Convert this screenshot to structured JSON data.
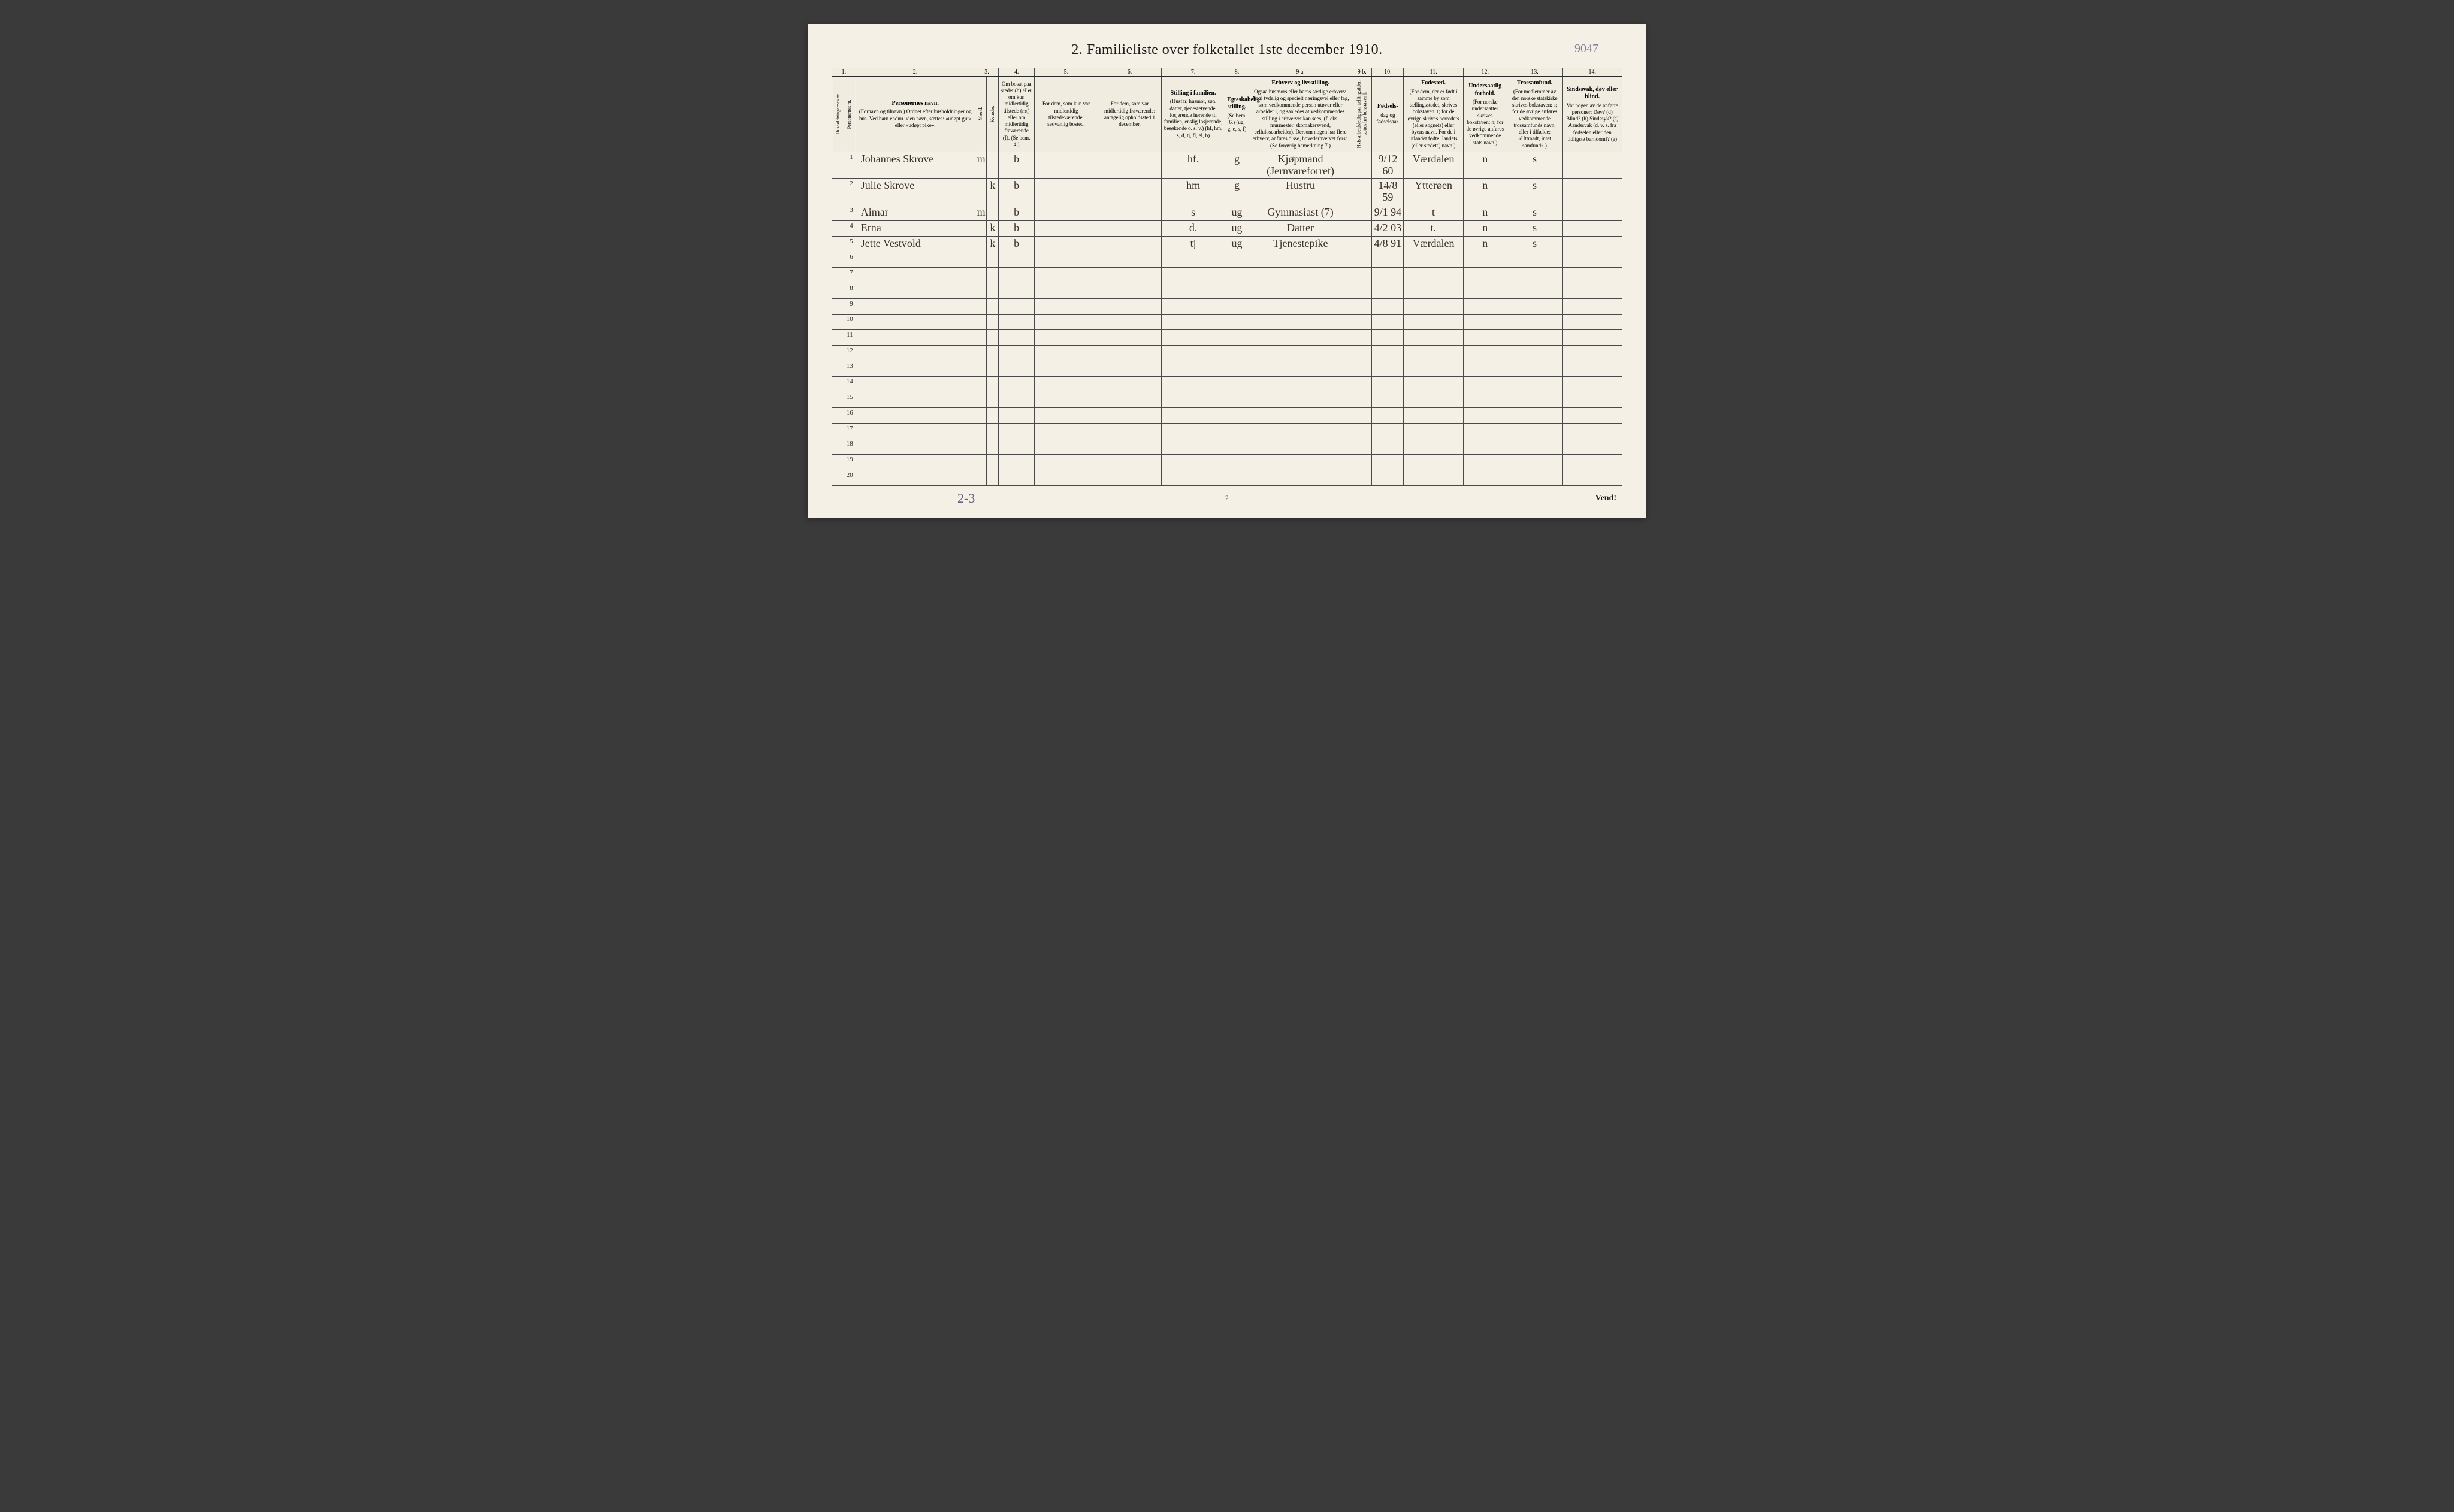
{
  "title": "2.  Familieliste over folketallet 1ste december 1910.",
  "top_annotation": "9047",
  "colnums": [
    "1.",
    "2.",
    "3.",
    "4.",
    "5.",
    "6.",
    "7.",
    "8.",
    "9 a.",
    "9 b.",
    "10.",
    "11.",
    "12.",
    "13.",
    "14."
  ],
  "headers": {
    "hnr": "Husholdningernes nr.",
    "pnr": "Personernes nr.",
    "name": {
      "title": "Personernes navn.",
      "sub": "(Fornavn og tilnavn.)\nOrdnet efter husholdninger og hus.\nVed barn endnu uden navn, sættes: «udøpt gut» eller «udøpt pike»."
    },
    "sex": {
      "title": "Kjøn.",
      "m": "Mænd.",
      "k": "Kvinder.",
      "sub": "m.   k."
    },
    "res": "Om bosat paa stedet (b) eller om kun midlertidig tilstede (mt) eller om midlertidig fraværende (f). (Se bem. 4.)",
    "temp": {
      "title": "For dem, som kun var midlertidig tilstedeværende:",
      "sub": "sedvanlig bosted."
    },
    "away": {
      "title": "For dem, som var midlertidig fraværende:",
      "sub": "antagelig opholdssted 1 december."
    },
    "pos": {
      "title": "Stilling i familien.",
      "sub": "(Husfar, husmor, søn, datter, tjenestetyende, losjerende hørende til familien, enslig losjerende, besøkende o. s. v.)\n(hf, hm, s, d, tj, fl, el, b)"
    },
    "mar": {
      "title": "Egteskabelig stilling.",
      "sub": "(Se bem. 6.)\n(ug, g, e, s, f)"
    },
    "occ": {
      "title": "Erhverv og livsstilling.",
      "sub": "Ogsaa husmors eller barns særlige erhverv.\nAngi tydelig og specielt næringsvei eller fag, som vedkommende person utøver eller arbeider i, og saaledes at vedkommendes stilling i erhvervet kan sees, (f. eks. murmester, skomakersvend, cellulosearbeider). Dersom nogen har flere erhverv, anføres disse, hovederhvervet først.\n(Se forøvrig bemerkning 7.)"
    },
    "unemp": "Hvis arbeidsledig paa tællingstiden, sættes her bokstaven l.",
    "bdate": {
      "title": "Fødsels-",
      "sub": "dag\nog\nfødselsaar."
    },
    "bplace": {
      "title": "Fødested.",
      "sub": "(For dem, der er født i samme by som tællingsstedet, skrives bokstaven: t; for de øvrige skrives herredets (eller sognets) eller byens navn.\nFor de i utlandet fødte: landets (eller stedets) navn.)"
    },
    "nat": {
      "title": "Undersaatlig forhold.",
      "sub": "(For norske undersaatter skrives bokstaven: n; for de øvrige anføres vedkommende stats navn.)"
    },
    "rel": {
      "title": "Trossamfund.",
      "sub": "(For medlemmer av den norske statskirke skrives bokstaven: s; for de øvrige anføres vedkommende trossamfunds navn, eller i tilfælde: «Uttraadt, intet samfund».)"
    },
    "dis": {
      "title": "Sindssvak, døv eller blind.",
      "sub": "Var nogen av de anførte personer:\nDøv?      (d)\nBlind?    (b)\nSindssyk? (s)\nAandssvak (d. v. s. fra fødselen eller den tidligste barndom)? (a)"
    }
  },
  "rows": [
    {
      "n": "1",
      "name": "Johannes Skrove",
      "m": "m",
      "k": "",
      "res": "b",
      "temp": "",
      "away": "",
      "pos": "hf.",
      "mar": "g",
      "occ": "Kjøpmand (Jernvareforret)",
      "unemp": "",
      "bdate": "9/12 60",
      "bplace": "Værdalen",
      "nat": "n",
      "rel": "s",
      "dis": ""
    },
    {
      "n": "2",
      "name": "Julie Skrove",
      "m": "",
      "k": "k",
      "res": "b",
      "temp": "",
      "away": "",
      "pos": "hm",
      "mar": "g",
      "occ": "Hustru",
      "unemp": "",
      "bdate": "14/8 59",
      "bplace": "Ytterøen",
      "nat": "n",
      "rel": "s",
      "dis": ""
    },
    {
      "n": "3",
      "name": "Aimar",
      "m": "m",
      "k": "",
      "res": "b",
      "temp": "",
      "away": "",
      "pos": "s",
      "mar": "ug",
      "occ": "Gymnasiast  (7)",
      "unemp": "",
      "bdate": "9/1 94",
      "bplace": "t",
      "nat": "n",
      "rel": "s",
      "dis": ""
    },
    {
      "n": "4",
      "name": "Erna",
      "m": "",
      "k": "k",
      "res": "b",
      "temp": "",
      "away": "",
      "pos": "d.",
      "mar": "ug",
      "occ": "Datter",
      "unemp": "",
      "bdate": "4/2 03",
      "bplace": "t.",
      "nat": "n",
      "rel": "s",
      "dis": ""
    },
    {
      "n": "5",
      "name": "Jette Vestvold",
      "m": "",
      "k": "k",
      "res": "b",
      "temp": "",
      "away": "",
      "pos": "tj",
      "mar": "ug",
      "occ": "Tjenestepike",
      "unemp": "",
      "bdate": "4/8 91",
      "bplace": "Værdalen",
      "nat": "n",
      "rel": "s",
      "dis": ""
    }
  ],
  "empty_row_nums": [
    "6",
    "7",
    "8",
    "9",
    "10",
    "11",
    "12",
    "13",
    "14",
    "15",
    "16",
    "17",
    "18",
    "19",
    "20"
  ],
  "footer": {
    "annotation": "2-3",
    "pagenum": "2",
    "vend": "Vend!"
  },
  "colors": {
    "page_bg": "#f4f0e6",
    "border": "#4a4a4a",
    "ink": "#3a3228",
    "print": "#1a1a1a"
  }
}
